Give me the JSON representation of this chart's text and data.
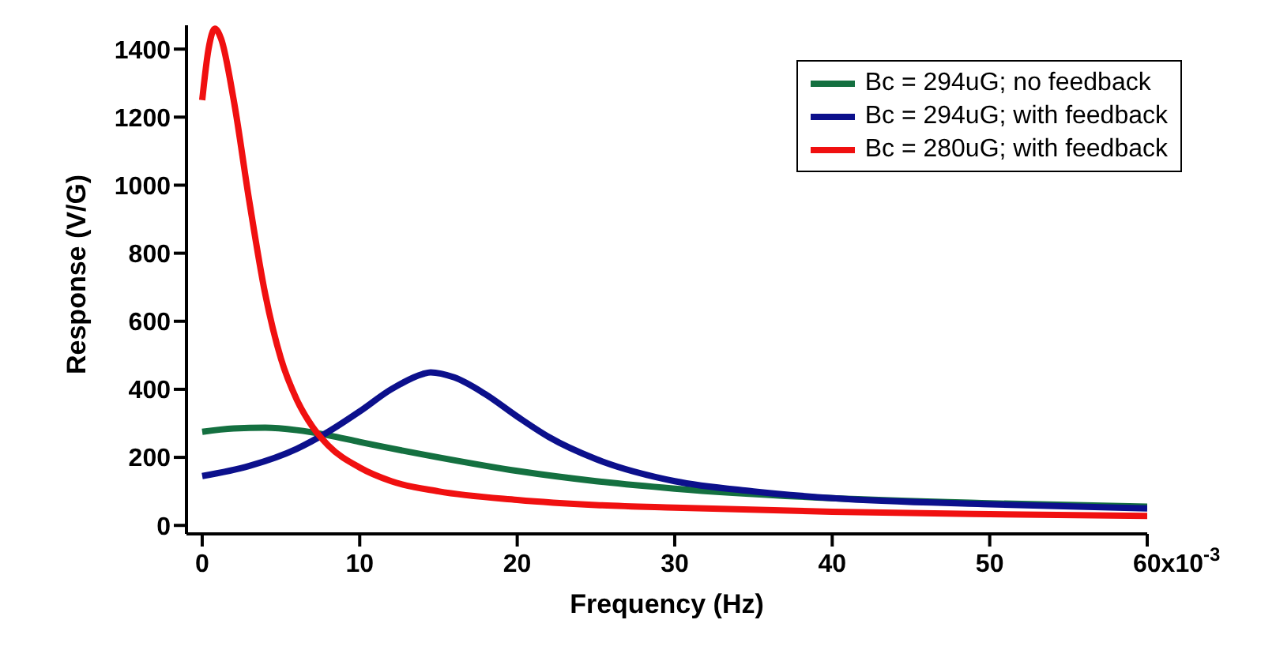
{
  "chart_data": {
    "type": "line",
    "xlabel": "Frequency (Hz)",
    "ylabel": "Response (V/G)",
    "xlim": [
      -1,
      60
    ],
    "ylim": [
      -25,
      1470
    ],
    "xticks": [
      0,
      10,
      20,
      30,
      40,
      50,
      60
    ],
    "yticks": [
      0,
      200,
      400,
      600,
      800,
      1000,
      1200,
      1400
    ],
    "annotations": [
      "x10$^{-3}$"
    ],
    "legend": "top right",
    "grid": false,
    "marker": "none",
    "line_style": "solid",
    "series": [
      {
        "name": "Bc = 294uG; no feedback",
        "color": "#147040",
        "x": [
          0,
          2,
          4,
          6,
          8,
          10,
          15,
          20,
          25,
          30,
          40,
          50,
          60
        ],
        "values": [
          275,
          285,
          287,
          280,
          265,
          245,
          200,
          160,
          130,
          108,
          80,
          65,
          55
        ]
      },
      {
        "name": "Bc = 294uG; with feedback",
        "color": "#0c108c",
        "x": [
          0,
          3,
          6,
          8,
          10,
          12,
          14,
          14.5,
          16,
          18,
          20,
          22,
          25,
          30,
          35,
          40,
          50,
          60
        ],
        "values": [
          145,
          175,
          225,
          275,
          335,
          400,
          445,
          450,
          435,
          385,
          320,
          260,
          195,
          130,
          100,
          80,
          62,
          50
        ]
      },
      {
        "name": "Bc = 280uG; with feedback",
        "color": "#f01010",
        "x": [
          0,
          0.4,
          0.8,
          1.2,
          2,
          3,
          4,
          5,
          6,
          7,
          8,
          10,
          12,
          15,
          20,
          25,
          30,
          40,
          50,
          60
        ],
        "values": [
          1250,
          1400,
          1460,
          1430,
          1250,
          950,
          680,
          490,
          370,
          290,
          235,
          170,
          130,
          100,
          75,
          60,
          52,
          40,
          33,
          28
        ]
      }
    ]
  }
}
